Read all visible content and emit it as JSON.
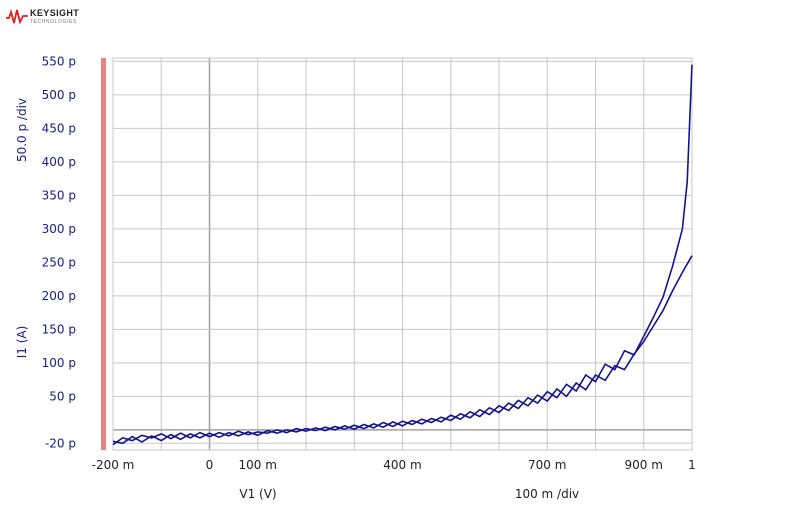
{
  "logo": {
    "brand": "KEYSIGHT",
    "sub": "TECHNOLOGIES"
  },
  "chart_data": {
    "type": "line",
    "xlabel": "V1 (V)",
    "x_div_label": "100 m /div",
    "ylabel": "I1 (A)",
    "y_div_label": "50.0 p /div",
    "xlim": [
      -0.2,
      1.0
    ],
    "ylim": [
      -30,
      555
    ],
    "x_ticks": [
      {
        "v": -0.2,
        "label": "-200 m"
      },
      {
        "v": 0.0,
        "label": "0"
      },
      {
        "v": 0.1,
        "label": "100 m"
      },
      {
        "v": 0.4,
        "label": "400 m"
      },
      {
        "v": 0.7,
        "label": "700 m"
      },
      {
        "v": 0.9,
        "label": "900 m"
      },
      {
        "v": 1.0,
        "label": "1"
      }
    ],
    "y_ticks": [
      {
        "v": 550,
        "label": "550 p"
      },
      {
        "v": 500,
        "label": "500 p"
      },
      {
        "v": 450,
        "label": "450 p"
      },
      {
        "v": 400,
        "label": "400 p"
      },
      {
        "v": 350,
        "label": "350 p"
      },
      {
        "v": 300,
        "label": "300 p"
      },
      {
        "v": 250,
        "label": "250 p"
      },
      {
        "v": 200,
        "label": "200 p"
      },
      {
        "v": 150,
        "label": "150 p"
      },
      {
        "v": 100,
        "label": "100 p"
      },
      {
        "v": 50,
        "label": "50 p"
      },
      {
        "v": -20,
        "label": "-20 p"
      }
    ],
    "grid": true,
    "colors": {
      "trace": "#14148c",
      "grid": "#c8c8c8",
      "zero": "#a0a0a0",
      "bar": "#e8847f",
      "text": "#1a1a8c"
    },
    "series": [
      {
        "x": [
          -0.2,
          -0.18,
          -0.16,
          -0.14,
          -0.12,
          -0.1,
          -0.08,
          -0.06,
          -0.04,
          -0.02,
          0.0,
          0.02,
          0.04,
          0.06,
          0.08,
          0.1,
          0.12,
          0.14,
          0.16,
          0.18,
          0.2,
          0.22,
          0.24,
          0.26,
          0.28,
          0.3,
          0.32,
          0.34,
          0.36,
          0.38,
          0.4,
          0.42,
          0.44,
          0.46,
          0.48,
          0.5,
          0.52,
          0.54,
          0.56,
          0.58,
          0.6,
          0.62,
          0.64,
          0.66,
          0.68,
          0.7,
          0.72,
          0.74,
          0.76,
          0.78,
          0.8,
          0.82,
          0.84,
          0.86,
          0.88,
          0.9,
          0.92,
          0.94,
          0.96,
          0.98,
          0.99,
          1.0
        ],
        "values": [
          -22,
          -12,
          -16,
          -8,
          -12,
          -6,
          -13,
          -5,
          -12,
          -4,
          -10,
          -4,
          -9,
          -2,
          -7,
          -3,
          -5,
          0,
          -4,
          2,
          -2,
          3,
          -1,
          5,
          1,
          7,
          2,
          9,
          4,
          12,
          6,
          14,
          9,
          17,
          12,
          22,
          16,
          27,
          20,
          33,
          26,
          40,
          32,
          48,
          40,
          57,
          48,
          68,
          58,
          82,
          72,
          98,
          90,
          118,
          112,
          140,
          168,
          198,
          245,
          300,
          370,
          545
        ]
      },
      {
        "x": [
          -0.2,
          -0.18,
          -0.16,
          -0.14,
          -0.12,
          -0.1,
          -0.08,
          -0.06,
          -0.04,
          -0.02,
          0.0,
          0.02,
          0.04,
          0.06,
          0.08,
          0.1,
          0.12,
          0.14,
          0.16,
          0.18,
          0.2,
          0.22,
          0.24,
          0.26,
          0.28,
          0.3,
          0.32,
          0.34,
          0.36,
          0.38,
          0.4,
          0.42,
          0.44,
          0.46,
          0.48,
          0.5,
          0.52,
          0.54,
          0.56,
          0.58,
          0.6,
          0.62,
          0.64,
          0.66,
          0.68,
          0.7,
          0.72,
          0.74,
          0.76,
          0.78,
          0.8,
          0.82,
          0.84,
          0.86,
          0.88,
          0.9,
          0.92,
          0.94,
          0.96,
          0.98,
          1.0
        ],
        "values": [
          -17,
          -20,
          -10,
          -18,
          -9,
          -16,
          -7,
          -14,
          -6,
          -12,
          -5,
          -11,
          -4,
          -9,
          -3,
          -8,
          -1,
          -5,
          0,
          -3,
          2,
          -1,
          4,
          0,
          6,
          1,
          8,
          3,
          11,
          5,
          13,
          8,
          16,
          11,
          19,
          14,
          24,
          18,
          30,
          23,
          36,
          29,
          44,
          36,
          52,
          43,
          61,
          50,
          70,
          60,
          82,
          74,
          96,
          90,
          113,
          132,
          155,
          178,
          208,
          235,
          260
        ]
      }
    ]
  }
}
